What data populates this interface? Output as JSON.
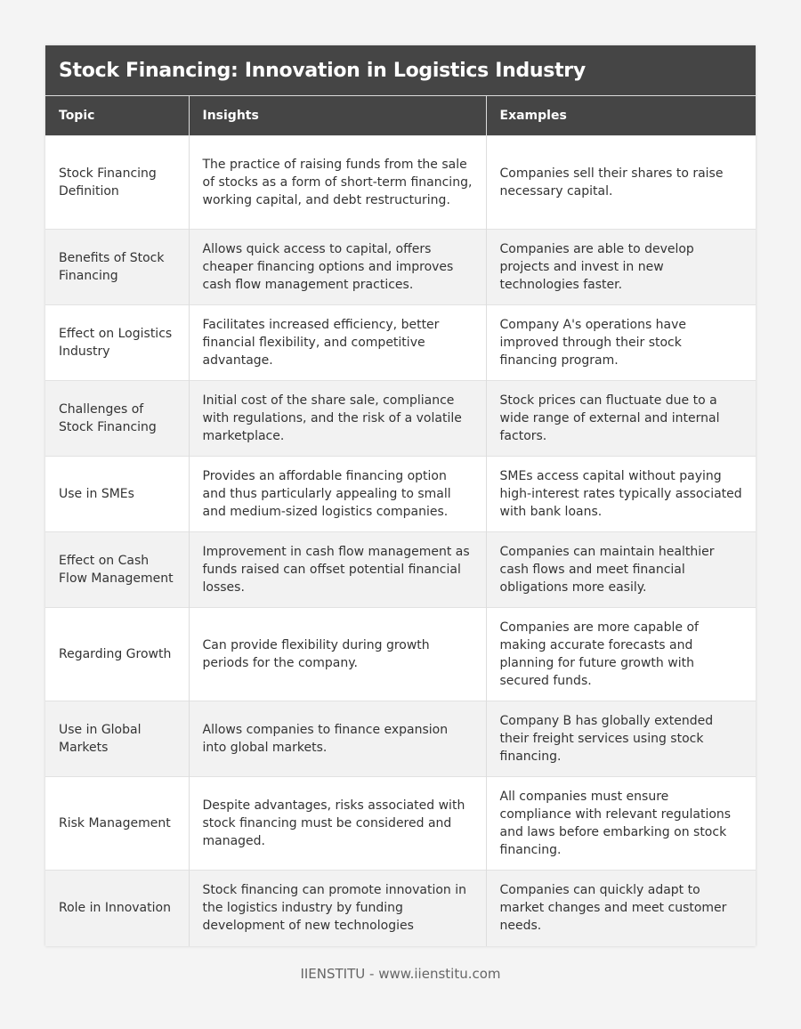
{
  "title": "Stock Financing: Innovation in Logistics Industry",
  "columns": [
    "Topic",
    "Insights",
    "Examples"
  ],
  "rows": [
    [
      "Stock Financing Definition",
      "The practice of raising funds from the sale of stocks as a form of short-term financing, working capital, and debt restructuring.",
      "Companies sell their shares to raise necessary capital."
    ],
    [
      "Benefits of Stock Financing",
      "Allows quick access to capital, offers cheaper financing options and improves cash flow management practices.",
      "Companies are able to develop projects and invest in new technologies faster."
    ],
    [
      "Effect on Logistics Industry",
      "Facilitates increased efficiency, better financial flexibility, and competitive advantage.",
      "Company A's operations have improved through their stock financing program."
    ],
    [
      "Challenges of Stock Financing",
      "Initial cost of the share sale, compliance with regulations, and the risk of a volatile marketplace.",
      "Stock prices can fluctuate due to a wide range of external and internal factors."
    ],
    [
      "Use in SMEs",
      "Provides an affordable financing option and thus particularly appealing to small and medium-sized logistics companies.",
      "SMEs access capital without paying high-interest rates typically associated with bank loans."
    ],
    [
      "Effect on Cash Flow Management",
      "Improvement in cash flow management as funds raised can offset potential financial losses.",
      "Companies can maintain healthier cash flows and meet financial obligations more easily."
    ],
    [
      "Regarding Growth",
      "Can provide flexibility during growth periods for the company.",
      "Companies are more capable of making accurate forecasts and planning for future growth with secured funds."
    ],
    [
      "Use in Global Markets",
      "Allows companies to finance expansion into global markets.",
      "Company B has globally extended their freight services using stock financing."
    ],
    [
      "Risk Management",
      "Despite advantages, risks associated with stock financing must be considered and managed.",
      "All companies must ensure compliance with relevant regulations and laws before embarking on stock financing."
    ],
    [
      "Role in Innovation",
      "Stock financing can promote innovation in the logistics industry by funding development of new technologies",
      "Companies can quickly adapt to market changes and meet customer needs."
    ]
  ],
  "footer": "IIENSTITU - www.iienstitu.com"
}
